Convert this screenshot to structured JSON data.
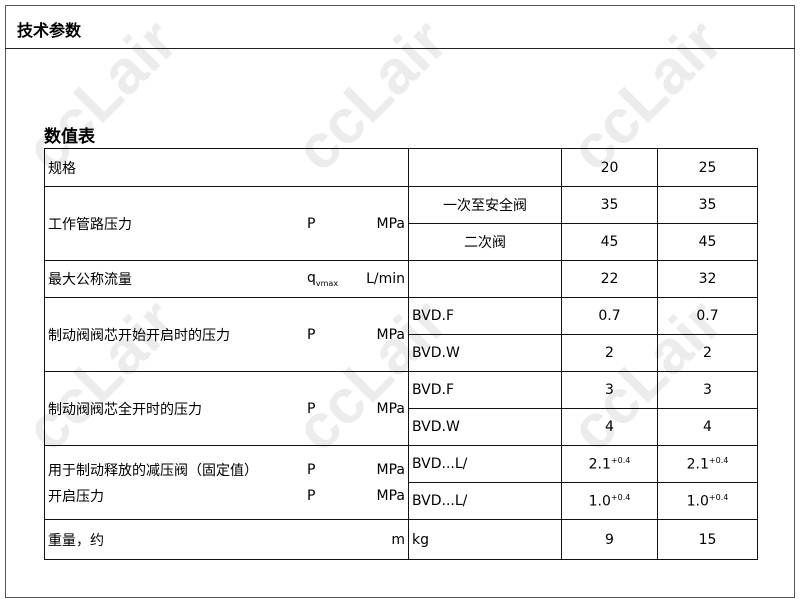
{
  "header": {
    "title": "技术参数"
  },
  "section": {
    "title": "数值表"
  },
  "watermark": "ccLair",
  "table": {
    "spec": {
      "label": "规格",
      "v1": "20",
      "v2": "25"
    },
    "pressure": {
      "label": "工作管路压力",
      "sym": "P",
      "unit": "MPa",
      "rows": [
        {
          "name": "一次至安全阀",
          "v1": "35",
          "v2": "35"
        },
        {
          "name": "二次阀",
          "v1": "45",
          "v2": "45"
        }
      ]
    },
    "flow": {
      "label": "最大公称流量",
      "sym": "q",
      "sym_sub": "vmax",
      "unit": "L/min",
      "v1": "22",
      "v2": "32"
    },
    "open_start": {
      "label": "制动阀阀芯开始开启时的压力",
      "sym": "P",
      "unit": "MPa",
      "rows": [
        {
          "name": "BVD.F",
          "v1": "0.7",
          "v2": "0.7"
        },
        {
          "name": "BVD.W",
          "v1": "2",
          "v2": "2"
        }
      ]
    },
    "open_full": {
      "label": "制动阀阀芯全开时的压力",
      "sym": "P",
      "unit": "MPa",
      "rows": [
        {
          "name": "BVD.F",
          "v1": "3",
          "v2": "3"
        },
        {
          "name": "BVD.W",
          "v1": "4",
          "v2": "4"
        }
      ]
    },
    "reducing": {
      "label1": "用于制动释放的减压阀（固定值）",
      "label2": "开启压力",
      "sym": "P",
      "unit": "MPa",
      "rows": [
        {
          "name": "BVD...L/",
          "v1": "2.1",
          "v2": "2.1",
          "tol": "+0.4"
        },
        {
          "name": "BVD...L/",
          "v1": "1.0",
          "v2": "1.0",
          "tol": "+0.4"
        }
      ]
    },
    "weight": {
      "label": "重量，约",
      "sym": "m",
      "unit": "kg",
      "v1": "9",
      "v2": "15"
    }
  }
}
